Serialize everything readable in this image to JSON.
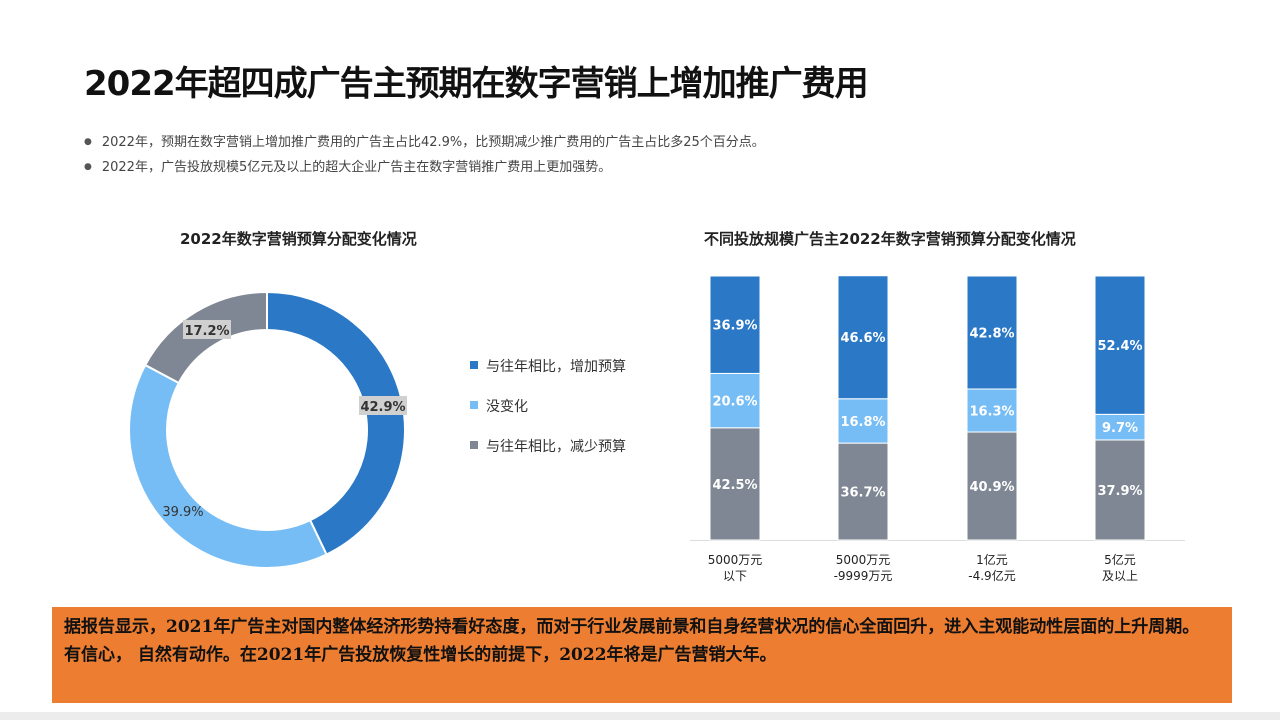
{
  "title": "2022年超四成广告主预期在数字营销上增加推广费用",
  "bullets": [
    "2022年，预期在数字营销上增加推广费用的广告主占比42.9%，比预期减少推广费用的广告主占比多25个百分点。",
    "2022年，广告投放规模5亿元及以上的超大企业广告主在数字营销推广费用上更加强势。"
  ],
  "colors": {
    "increase": "#2a78c6",
    "nochange": "#77bdf5",
    "decrease": "#7f8794",
    "callout": "#ed7d31"
  },
  "chart_data": [
    {
      "type": "pie",
      "donut": true,
      "title": "2022年数字营销预算分配变化情况",
      "slices": [
        {
          "name": "与往年相比，增加预算",
          "value": 42.9,
          "label": "42.9%"
        },
        {
          "name": "没变化",
          "value": 39.9,
          "label": "39.9%"
        },
        {
          "name": "与往年相比，减少预算",
          "value": 17.2,
          "label": "17.2%"
        }
      ],
      "legend": "right"
    },
    {
      "type": "bar",
      "stacked": true,
      "title": "不同投放规模广告主2022年数字营销预算分配变化情况",
      "categories": [
        [
          "5000万元",
          "以下"
        ],
        [
          "5000万元",
          "-9999万元"
        ],
        [
          "1亿元",
          "-4.9亿元"
        ],
        [
          "5亿元",
          "及以上"
        ]
      ],
      "series": [
        {
          "key": "decrease",
          "values": [
            42.5,
            36.7,
            40.9,
            37.9
          ]
        },
        {
          "key": "nochange",
          "values": [
            20.6,
            16.8,
            16.3,
            9.7
          ]
        },
        {
          "key": "increase",
          "values": [
            36.9,
            46.6,
            42.8,
            52.4
          ]
        }
      ],
      "ylim": [
        0,
        100
      ]
    }
  ],
  "callout": [
    "据报告显示，2021年广告主对国内整体经济形势持看好态度，而对于行业发展前景和自身经营状况的信心全面回升，进入主观能动性层面的上升周期。",
    "有信心， 自然有动作。在2021年广告投放恢复性增长的前提下，2022年将是广告营销大年。"
  ]
}
